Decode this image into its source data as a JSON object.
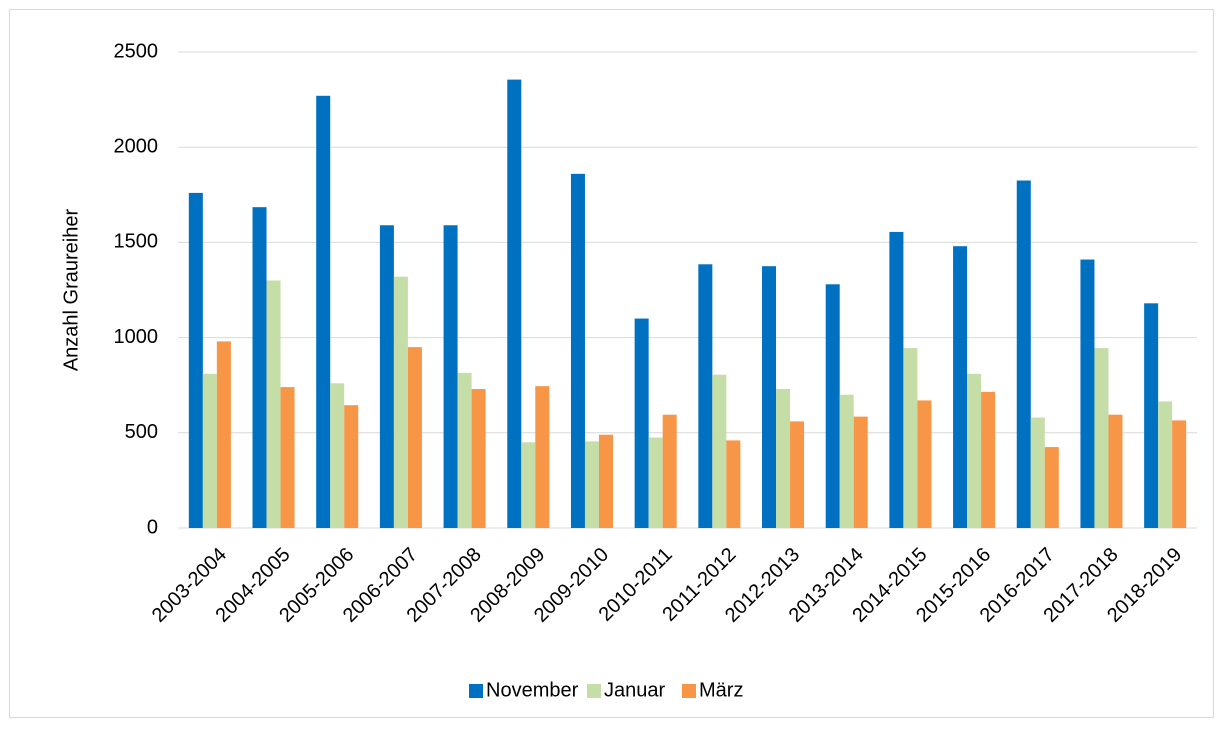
{
  "chart_data": {
    "type": "bar",
    "y_label": "Anzahl Graureiher",
    "categories": [
      "2003-2004",
      "2004-2005",
      "2005-2006",
      "2006-2007",
      "2007-2008",
      "2008-2009",
      "2009-2010",
      "2010-2011",
      "2011-2012",
      "2012-2013",
      "2013-2014",
      "2014-2015",
      "2015-2016",
      "2016-2017",
      "2017-2018",
      "2018-2019"
    ],
    "series": [
      {
        "name": "November",
        "color": "#0070c0",
        "values": [
          1760,
          1685,
          2270,
          1590,
          1590,
          2355,
          1860,
          1100,
          1385,
          1375,
          1280,
          1555,
          1480,
          1825,
          1410,
          1180
        ]
      },
      {
        "name": "Januar",
        "color": "#c5dea8",
        "values": [
          810,
          1300,
          760,
          1320,
          815,
          450,
          455,
          475,
          805,
          730,
          700,
          945,
          810,
          580,
          945,
          665
        ]
      },
      {
        "name": "März",
        "color": "#f79646",
        "values": [
          980,
          740,
          645,
          950,
          730,
          745,
          490,
          595,
          460,
          560,
          585,
          670,
          715,
          425,
          595,
          565
        ]
      }
    ],
    "ylim": [
      0,
      2500
    ],
    "yticks": [
      0,
      500,
      1000,
      1500,
      2000,
      2500
    ],
    "grid": true,
    "legend": "bottom"
  }
}
